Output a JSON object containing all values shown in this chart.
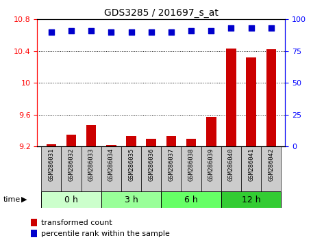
{
  "title": "GDS3285 / 201697_s_at",
  "samples": [
    "GSM286031",
    "GSM286032",
    "GSM286033",
    "GSM286034",
    "GSM286035",
    "GSM286036",
    "GSM286037",
    "GSM286038",
    "GSM286039",
    "GSM286040",
    "GSM286041",
    "GSM286042"
  ],
  "transformed_count": [
    9.23,
    9.35,
    9.47,
    9.22,
    9.33,
    9.3,
    9.33,
    9.3,
    9.57,
    10.43,
    10.32,
    10.42
  ],
  "percentile_rank": [
    90,
    91,
    91,
    90,
    90,
    90,
    90,
    91,
    91,
    93,
    93,
    93
  ],
  "groups": [
    {
      "label": "0 h",
      "color": "#ccffcc",
      "start": 0,
      "end": 3
    },
    {
      "label": "3 h",
      "color": "#99ff99",
      "start": 3,
      "end": 6
    },
    {
      "label": "6 h",
      "color": "#66ff66",
      "start": 6,
      "end": 9
    },
    {
      "label": "12 h",
      "color": "#33cc33",
      "start": 9,
      "end": 12
    }
  ],
  "ylim_left": [
    9.2,
    10.8
  ],
  "ylim_right": [
    0,
    100
  ],
  "yticks_left": [
    9.2,
    9.6,
    10.0,
    10.4,
    10.8
  ],
  "yticks_right": [
    0,
    25,
    50,
    75,
    100
  ],
  "ytick_labels_left": [
    "9.2",
    "9.6",
    "10",
    "10.4",
    "10.8"
  ],
  "ytick_labels_right": [
    "0",
    "25",
    "50",
    "75",
    "100"
  ],
  "bar_color": "#cc0000",
  "dot_color": "#0000cc",
  "bar_width": 0.5,
  "dot_size": 40,
  "group_colors": [
    "#ccffcc",
    "#99ff99",
    "#66ff66",
    "#33cc33"
  ],
  "group_labels": [
    "0 h",
    "3 h",
    "6 h",
    "12 h"
  ],
  "group_ranges": [
    [
      0,
      3
    ],
    [
      3,
      6
    ],
    [
      6,
      9
    ],
    [
      9,
      12
    ]
  ],
  "legend_items": [
    {
      "label": "transformed count",
      "color": "#cc0000"
    },
    {
      "label": "percentile rank within the sample",
      "color": "#0000cc"
    }
  ],
  "xlabel_box_color": "#cccccc",
  "sample_fontsize": 6.5,
  "group_fontsize": 9,
  "title_fontsize": 10
}
